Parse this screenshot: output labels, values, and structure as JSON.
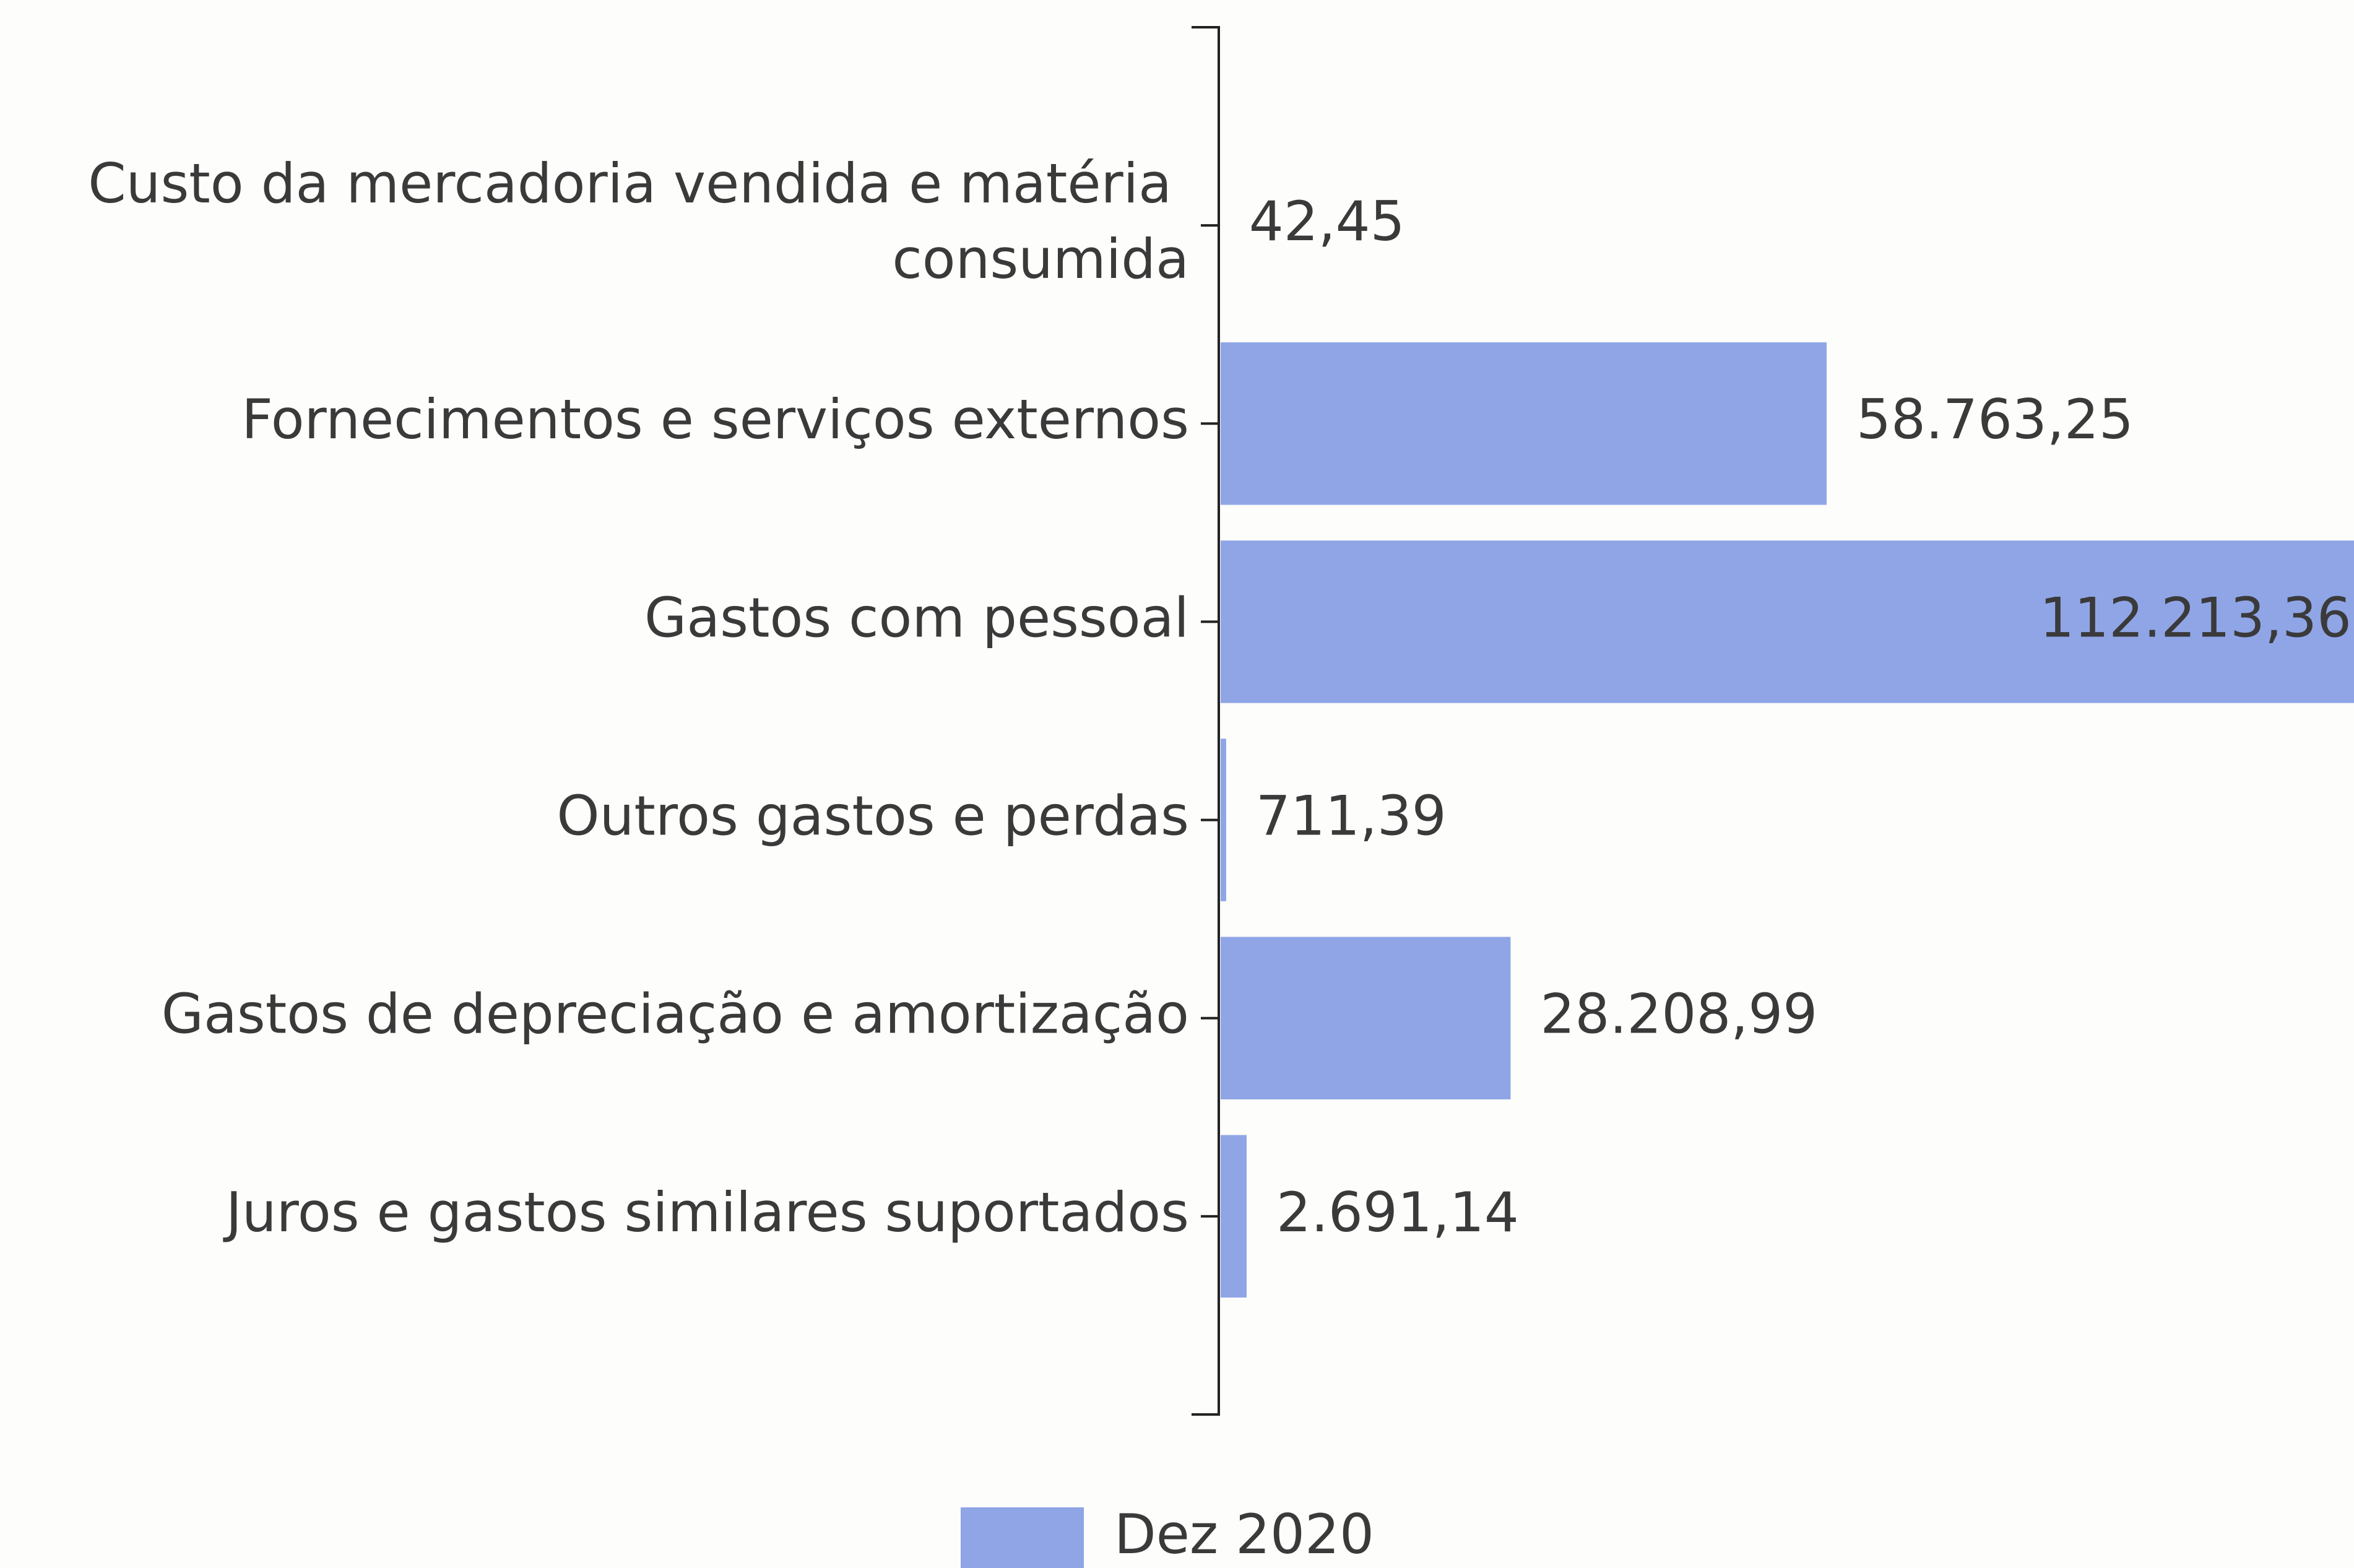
{
  "chart_data": {
    "type": "bar",
    "orientation": "horizontal",
    "categories": [
      "Custo da mercadoria vendida e matéria consumida",
      "Fornecimentos e serviços externos",
      "Gastos com pessoal",
      "Outros gastos e perdas",
      "Gastos de depreciação e amortização",
      "Juros e gastos similares suportados"
    ],
    "series": [
      {
        "name": "Dez 2020",
        "color": "#8fa5e6",
        "values": [
          42.45,
          58763.25,
          112213.36,
          711.39,
          28208.99,
          2691.14
        ],
        "value_labels": [
          "42,45",
          "58.763,25",
          "112.213,36",
          "711,39",
          "28.208,99",
          "2.691,14"
        ]
      }
    ]
  }
}
